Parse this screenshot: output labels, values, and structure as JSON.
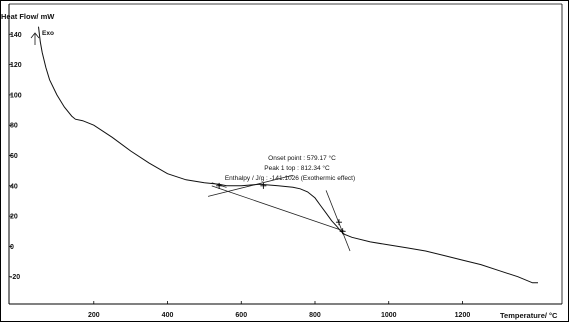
{
  "chart_data": {
    "type": "line",
    "title": "",
    "ylabel": "Heat Flow/ mW",
    "xlabel": "Temperature/ °C",
    "exo_label": "Exo",
    "xlim": [
      -30,
      1470
    ],
    "ylim": [
      -38,
      160
    ],
    "x_ticks": [
      200,
      400,
      600,
      800,
      1000,
      1200
    ],
    "y_ticks": [
      140,
      120,
      100,
      80,
      60,
      40,
      20,
      0,
      -20
    ],
    "grid": false,
    "annotations": {
      "onset": "Onset point : 579.17  °C",
      "peak": "Peak 1 top : 812.34  °C",
      "enthalpy": "Enthalpy / J/g : -141.1026 (Exothermic effect)"
    },
    "series": [
      {
        "x": [
          50,
          55,
          60,
          70,
          80,
          100,
          120,
          140,
          150,
          170,
          200,
          250,
          300,
          350,
          400,
          450,
          500,
          540,
          560,
          600,
          650,
          700,
          740,
          760,
          780,
          800,
          815,
          830,
          845,
          860,
          870,
          880,
          900,
          950,
          1000,
          1050,
          1100,
          1150,
          1200,
          1250,
          1300,
          1350,
          1390,
          1405
        ],
        "y": [
          145,
          135,
          128,
          118,
          110,
          100,
          92,
          86,
          84,
          83,
          80,
          72,
          63,
          55,
          48,
          44,
          42,
          41,
          40,
          40,
          41,
          40,
          39,
          38,
          36,
          32,
          27,
          22,
          17,
          13,
          10,
          8,
          6,
          3,
          1,
          -1,
          -3,
          -6,
          -9,
          -12,
          -16,
          -20,
          -24,
          -24
        ]
      }
    ],
    "tangents": [
      {
        "x": [
          510,
          740
        ],
        "y": [
          33,
          47
        ]
      },
      {
        "x": [
          520,
          560
        ],
        "y": [
          42,
          39
        ]
      },
      {
        "x": [
          830,
          895
        ],
        "y": [
          37,
          -3
        ]
      },
      {
        "x": [
          520,
          880
        ],
        "y": [
          40,
          10
        ]
      }
    ],
    "markers": [
      {
        "x": 540,
        "y": 40
      },
      {
        "x": 660,
        "y": 40
      },
      {
        "x": 865,
        "y": 16
      },
      {
        "x": 875,
        "y": 10
      }
    ]
  }
}
